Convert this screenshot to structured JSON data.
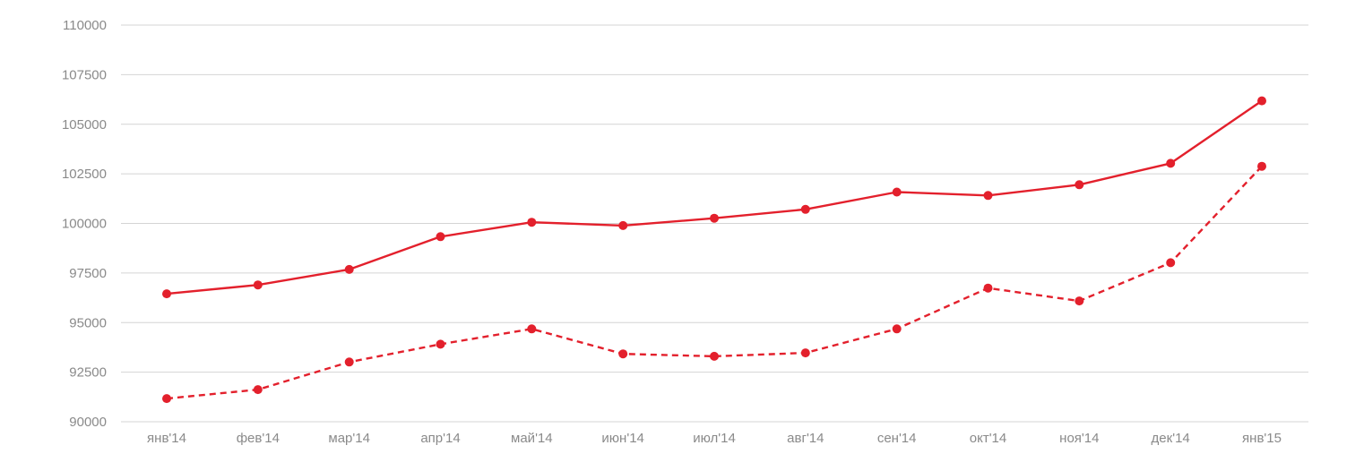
{
  "chart_data": {
    "type": "line",
    "title": "",
    "xlabel": "",
    "ylabel": "",
    "categories": [
      "янв'14",
      "фев'14",
      "мар'14",
      "апр'14",
      "май'14",
      "июн'14",
      "июл'14",
      "авг'14",
      "сен'14",
      "окт'14",
      "ноя'14",
      "дек'14",
      "янв'15"
    ],
    "yticks": [
      "90000",
      "92500",
      "95000",
      "97500",
      "100000",
      "102500",
      "105000",
      "107500",
      "110000"
    ],
    "ylim": [
      90000,
      110000
    ],
    "grid": true,
    "legend": "none",
    "series": [
      {
        "style": "solid",
        "color": "#e3202c",
        "values": [
          96450,
          96900,
          97680,
          99330,
          100060,
          99890,
          100260,
          100710,
          101580,
          101410,
          101950,
          103030,
          106180
        ]
      },
      {
        "style": "dashed",
        "color": "#e3202c",
        "values": [
          91170,
          91620,
          93010,
          93910,
          94680,
          93420,
          93300,
          93470,
          94680,
          96740,
          96090,
          98020,
          102880
        ]
      }
    ]
  }
}
